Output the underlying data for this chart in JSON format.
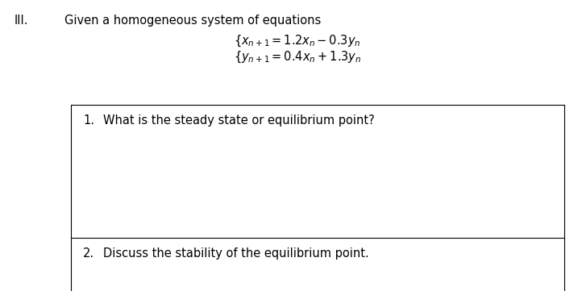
{
  "roman_numeral": "III.",
  "intro_text": "Given a homogeneous system of equations",
  "eq_line1": "$\\left(x_{n+1} = 1.2x_n - 0.3y_n\\right.$",
  "eq_line2": "$\\left(y_{n+1} = 0.4x_n + 1.3y_n\\right.$",
  "q1_num": "1.",
  "q1_text": "What is the steady state or equilibrium point?",
  "q2_num": "2.",
  "q2_text": "Discuss the stability of the equilibrium point.",
  "bg_color": "#ffffff",
  "text_color": "#000000",
  "box_edge_color": "#000000",
  "font_size_main": 10.5,
  "font_size_eq": 10.5
}
